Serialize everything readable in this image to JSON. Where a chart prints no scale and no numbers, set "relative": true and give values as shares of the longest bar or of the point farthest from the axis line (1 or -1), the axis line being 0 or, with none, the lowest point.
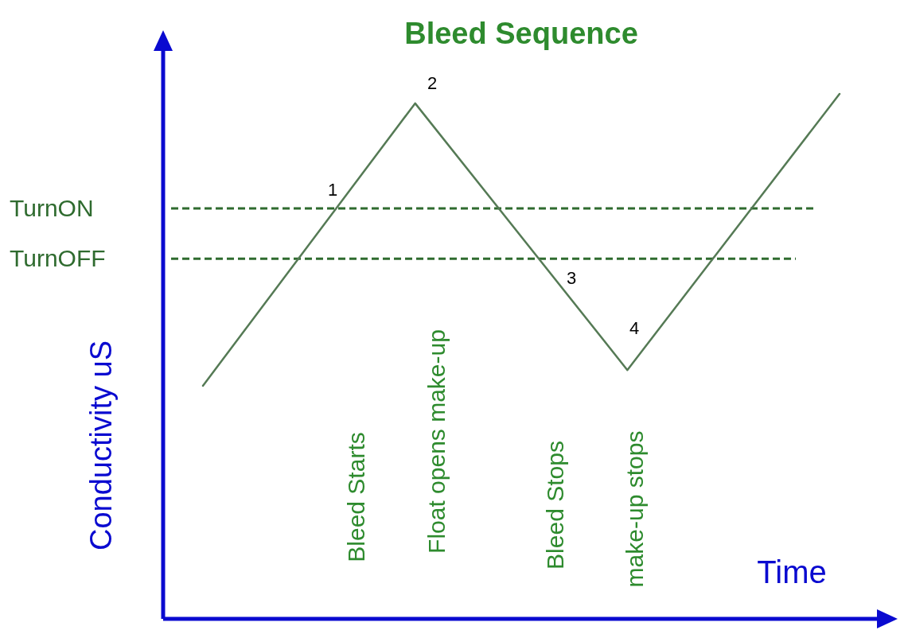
{
  "chart_data": {
    "type": "line",
    "title": "Bleed Sequence",
    "xlabel": "Time",
    "ylabel": "Conductivity uS",
    "relative": true,
    "categories": [
      null,
      null,
      null,
      null
    ],
    "series": [
      {
        "color": "#557a55",
        "values": [
          0.444,
          0.982,
          0.474,
          1.0
        ]
      }
    ],
    "line_style": "solid",
    "marker": "none",
    "ref_lines": [
      {
        "axis": "y",
        "value": 0.782,
        "label": "TurnON",
        "color": "#2f6b2f",
        "line_style": "dashed"
      },
      {
        "axis": "y",
        "value": 0.686,
        "label": "TurnOFF",
        "color": "#2f6b2f",
        "line_style": "dashed"
      }
    ],
    "annotations": [
      "1",
      "2",
      "3",
      "4",
      "Bleed Starts",
      "Float opens make-up",
      "Bleed Stops",
      "make-up stops"
    ]
  }
}
